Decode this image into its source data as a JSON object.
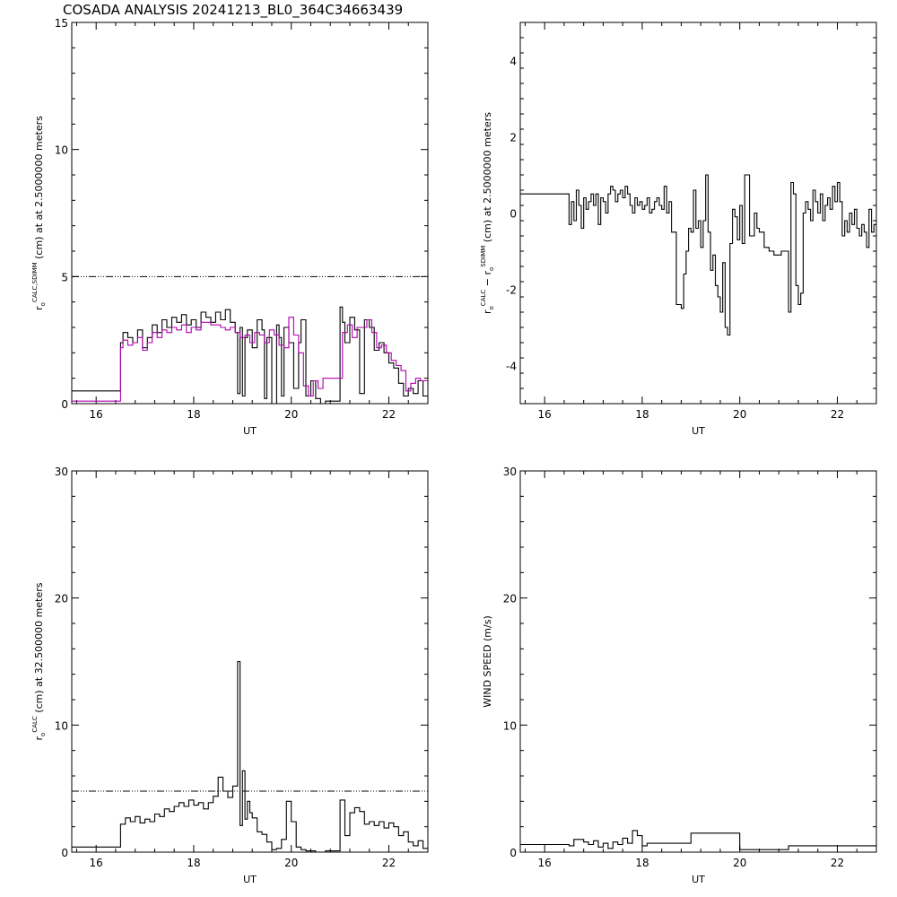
{
  "figure": {
    "title": "COSADA ANALYSIS 20241213_BL0_364C34663439"
  },
  "colors": {
    "series_primary": "#000000",
    "series_secondary": "#b000b0",
    "threshold": "#000000",
    "axes": "#000000",
    "background": "#ffffff"
  },
  "chart_data": [
    {
      "id": "panel1",
      "type": "line",
      "step": true,
      "xlabel": "UT",
      "ylabel_parts": {
        "sym": "r",
        "sub": "o",
        "sup": "CALC,SDIMM",
        "text": "(cm) at  at 2.5000000 meters"
      },
      "xlim": [
        15.5,
        22.8
      ],
      "ylim": [
        0,
        15
      ],
      "xticks": [
        16,
        18,
        20,
        22
      ],
      "yticks": [
        0,
        5,
        10,
        15
      ],
      "threshold": 5,
      "series": [
        {
          "color": "#000000",
          "x": [
            15.5,
            16.5,
            16.55,
            16.65,
            16.75,
            16.85,
            16.95,
            17.05,
            17.15,
            17.25,
            17.35,
            17.45,
            17.55,
            17.65,
            17.75,
            17.85,
            17.95,
            18.05,
            18.15,
            18.25,
            18.35,
            18.45,
            18.55,
            18.65,
            18.75,
            18.85,
            18.9,
            18.95,
            19.0,
            19.05,
            19.1,
            19.2,
            19.3,
            19.4,
            19.45,
            19.5,
            19.6,
            19.7,
            19.75,
            19.8,
            19.85,
            19.95,
            20.05,
            20.15,
            20.2,
            20.3,
            20.4,
            20.5,
            20.6,
            20.7,
            20.9,
            21.0,
            21.05,
            21.1,
            21.2,
            21.3,
            21.4,
            21.5,
            21.6,
            21.7,
            21.8,
            21.9,
            22.0,
            22.1,
            22.2,
            22.3,
            22.4,
            22.5,
            22.6,
            22.7
          ],
          "y": [
            0.5,
            2.4,
            2.8,
            2.6,
            2.4,
            2.9,
            2.2,
            2.6,
            3.1,
            2.8,
            3.3,
            3.0,
            3.4,
            3.2,
            3.5,
            3.1,
            3.3,
            3.0,
            3.6,
            3.4,
            3.2,
            3.6,
            3.3,
            3.7,
            3.2,
            2.8,
            0.4,
            3.0,
            0.3,
            2.6,
            2.9,
            2.2,
            3.3,
            2.9,
            0.2,
            2.6,
            0.0,
            3.1,
            2.6,
            0.3,
            3.0,
            2.4,
            0.6,
            2.4,
            3.3,
            0.3,
            0.9,
            0.2,
            0.0,
            0.1,
            0.1,
            3.8,
            3.2,
            2.4,
            3.4,
            2.9,
            0.4,
            3.3,
            3.0,
            2.1,
            2.4,
            2.0,
            1.6,
            1.4,
            0.8,
            0.3,
            0.6,
            0.4,
            0.9,
            0.3
          ]
        },
        {
          "color": "#b000b0",
          "x": [
            15.5,
            16.5,
            16.55,
            16.65,
            16.75,
            16.85,
            16.95,
            17.05,
            17.15,
            17.25,
            17.35,
            17.45,
            17.55,
            17.65,
            17.75,
            17.85,
            17.95,
            18.05,
            18.15,
            18.25,
            18.35,
            18.45,
            18.55,
            18.65,
            18.75,
            18.85,
            18.95,
            19.05,
            19.15,
            19.25,
            19.35,
            19.45,
            19.55,
            19.65,
            19.75,
            19.85,
            19.95,
            20.05,
            20.15,
            20.25,
            20.35,
            20.45,
            20.55,
            20.65,
            20.75,
            20.85,
            20.95,
            21.05,
            21.15,
            21.25,
            21.35,
            21.45,
            21.55,
            21.65,
            21.75,
            21.85,
            21.95,
            22.05,
            22.15,
            22.25,
            22.35,
            22.45,
            22.55,
            22.65
          ],
          "y": [
            0.1,
            2.2,
            2.5,
            2.3,
            2.4,
            2.6,
            2.1,
            2.4,
            2.8,
            2.6,
            2.9,
            2.8,
            3.0,
            2.9,
            3.1,
            2.8,
            3.0,
            2.9,
            3.2,
            3.2,
            3.1,
            3.1,
            3.0,
            2.9,
            3.0,
            2.8,
            2.6,
            2.7,
            2.4,
            2.8,
            2.7,
            2.4,
            2.9,
            2.7,
            2.3,
            2.2,
            3.4,
            2.7,
            2.0,
            0.7,
            0.3,
            0.9,
            0.6,
            1.0,
            1.0,
            1.0,
            1.0,
            2.8,
            3.1,
            2.6,
            3.0,
            3.0,
            3.3,
            2.8,
            2.2,
            2.3,
            2.0,
            1.7,
            1.5,
            1.3,
            0.5,
            0.8,
            1.0,
            0.9
          ]
        }
      ]
    },
    {
      "id": "panel2",
      "type": "line",
      "step": true,
      "xlabel": "UT",
      "ylabel_parts": {
        "sym": "r",
        "sub": "o",
        "sup": "CALC",
        "mid": " − r",
        "sub2": "o",
        "sup2": "SDIMM",
        "text": "(cm) at 2.5000000 meters"
      },
      "xlim": [
        15.5,
        22.8
      ],
      "ylim": [
        -5,
        5
      ],
      "xticks": [
        16,
        18,
        20,
        22
      ],
      "yticks": [
        -4,
        -2,
        0,
        2,
        4
      ],
      "series": [
        {
          "color": "#000000",
          "x": [
            15.5,
            16.5,
            16.55,
            16.6,
            16.65,
            16.7,
            16.75,
            16.8,
            16.85,
            16.9,
            16.95,
            17.0,
            17.05,
            17.1,
            17.15,
            17.2,
            17.25,
            17.3,
            17.35,
            17.4,
            17.45,
            17.5,
            17.55,
            17.6,
            17.65,
            17.7,
            17.75,
            17.8,
            17.85,
            17.9,
            17.95,
            18.0,
            18.05,
            18.1,
            18.15,
            18.2,
            18.25,
            18.3,
            18.35,
            18.4,
            18.45,
            18.5,
            18.55,
            18.6,
            18.7,
            18.8,
            18.85,
            18.9,
            18.95,
            19.0,
            19.05,
            19.1,
            19.15,
            19.2,
            19.25,
            19.3,
            19.35,
            19.4,
            19.45,
            19.5,
            19.55,
            19.6,
            19.65,
            19.7,
            19.75,
            19.8,
            19.85,
            19.9,
            19.95,
            20.0,
            20.05,
            20.1,
            20.2,
            20.3,
            20.35,
            20.4,
            20.5,
            20.6,
            20.7,
            20.85,
            21.0,
            21.05,
            21.1,
            21.15,
            21.2,
            21.25,
            21.3,
            21.35,
            21.4,
            21.45,
            21.5,
            21.55,
            21.6,
            21.65,
            21.7,
            21.75,
            21.8,
            21.85,
            21.9,
            21.95,
            22.0,
            22.05,
            22.1,
            22.15,
            22.2,
            22.25,
            22.3,
            22.35,
            22.4,
            22.45,
            22.5,
            22.55,
            22.6,
            22.65,
            22.7,
            22.75
          ],
          "y": [
            0.5,
            -0.3,
            0.3,
            -0.2,
            0.6,
            0.2,
            -0.4,
            0.4,
            0.1,
            0.3,
            0.5,
            0.2,
            0.5,
            -0.3,
            0.4,
            0.3,
            0.0,
            0.5,
            0.7,
            0.6,
            0.3,
            0.5,
            0.6,
            0.4,
            0.7,
            0.5,
            0.2,
            0.0,
            0.4,
            0.2,
            0.3,
            0.1,
            0.2,
            0.4,
            0.0,
            0.1,
            0.3,
            0.4,
            0.2,
            0.1,
            0.7,
            0.0,
            0.3,
            -0.5,
            -2.4,
            -2.5,
            -1.6,
            -1.0,
            -0.4,
            -0.5,
            0.6,
            -0.4,
            -0.2,
            -0.9,
            -0.2,
            1.0,
            -0.5,
            -1.5,
            -1.1,
            -1.9,
            -2.2,
            -2.6,
            -1.3,
            -3.0,
            -3.2,
            -0.8,
            0.1,
            -0.1,
            -0.7,
            0.2,
            -0.8,
            1.0,
            -0.6,
            0.0,
            -0.4,
            -0.5,
            -0.9,
            -1.0,
            -1.1,
            -1.0,
            -2.6,
            0.8,
            0.5,
            -1.9,
            -2.4,
            -2.1,
            0.0,
            0.3,
            0.1,
            -0.2,
            0.6,
            0.3,
            0.0,
            0.5,
            -0.2,
            0.2,
            0.4,
            0.1,
            0.7,
            0.3,
            0.8,
            0.3,
            -0.6,
            -0.2,
            -0.5,
            0.0,
            -0.3,
            0.1,
            -0.4,
            -0.6,
            -0.3,
            -0.5,
            -0.9,
            0.1,
            -0.5,
            -0.3
          ]
        }
      ]
    },
    {
      "id": "panel3",
      "type": "line",
      "step": true,
      "xlabel": "UT",
      "ylabel_parts": {
        "sym": "r",
        "sub": "o",
        "sup": "CALC",
        "text": "(cm) at 32.500000 meters"
      },
      "xlim": [
        15.5,
        22.8
      ],
      "ylim": [
        0,
        30
      ],
      "xticks": [
        16,
        18,
        20,
        22
      ],
      "yticks": [
        0,
        10,
        20,
        30
      ],
      "threshold": 4.8,
      "series": [
        {
          "color": "#000000",
          "x": [
            15.5,
            16.5,
            16.6,
            16.7,
            16.8,
            16.9,
            17.0,
            17.1,
            17.2,
            17.3,
            17.4,
            17.5,
            17.6,
            17.7,
            17.8,
            17.9,
            18.0,
            18.1,
            18.2,
            18.3,
            18.4,
            18.5,
            18.6,
            18.7,
            18.8,
            18.9,
            18.95,
            19.0,
            19.05,
            19.1,
            19.15,
            19.2,
            19.3,
            19.4,
            19.5,
            19.6,
            19.7,
            19.8,
            19.9,
            20.0,
            20.1,
            20.2,
            20.3,
            20.5,
            20.7,
            21.0,
            21.1,
            21.2,
            21.3,
            21.4,
            21.5,
            21.6,
            21.7,
            21.8,
            21.9,
            22.0,
            22.1,
            22.2,
            22.3,
            22.4,
            22.5,
            22.6,
            22.7
          ],
          "y": [
            0.4,
            2.2,
            2.7,
            2.4,
            2.8,
            2.3,
            2.6,
            2.4,
            3.0,
            2.8,
            3.4,
            3.2,
            3.6,
            3.9,
            3.6,
            4.1,
            3.7,
            3.9,
            3.4,
            3.9,
            4.4,
            5.9,
            4.8,
            4.3,
            5.2,
            15.0,
            2.1,
            6.4,
            2.6,
            4.0,
            3.1,
            2.7,
            1.6,
            1.4,
            0.8,
            0.2,
            0.3,
            1.0,
            4.0,
            2.4,
            0.4,
            0.2,
            0.1,
            0.0,
            0.1,
            4.1,
            1.3,
            3.1,
            3.5,
            3.2,
            2.2,
            2.4,
            2.1,
            2.4,
            1.9,
            2.3,
            2.0,
            1.3,
            1.6,
            0.8,
            0.5,
            0.9,
            0.3
          ]
        }
      ]
    },
    {
      "id": "panel4",
      "type": "line",
      "step": true,
      "xlabel": "UT",
      "ylabel": "WIND SPEED (m/s)",
      "xlim": [
        15.5,
        22.8
      ],
      "ylim": [
        0,
        30
      ],
      "xticks": [
        16,
        18,
        20,
        22
      ],
      "yticks": [
        0,
        10,
        20,
        30
      ],
      "series": [
        {
          "color": "#000000",
          "x": [
            15.5,
            16.5,
            16.6,
            16.8,
            16.9,
            17.0,
            17.1,
            17.2,
            17.3,
            17.4,
            17.5,
            17.6,
            17.7,
            17.8,
            17.9,
            18.0,
            18.1,
            19.0,
            19.1,
            20.0,
            21.0,
            22.8
          ],
          "y": [
            0.6,
            0.5,
            1.0,
            0.8,
            0.6,
            0.9,
            0.4,
            0.7,
            0.3,
            0.8,
            0.6,
            1.1,
            0.7,
            1.7,
            1.3,
            0.5,
            0.7,
            1.5,
            1.5,
            0.2,
            0.5,
            0.5
          ]
        }
      ]
    }
  ]
}
